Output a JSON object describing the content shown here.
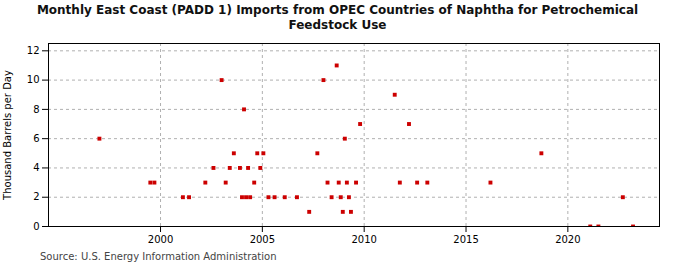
{
  "chart_data": {
    "type": "scatter",
    "title": "Monthly East Coast (PADD 1) Imports from OPEC Countries of Naphtha for Petrochemical\nFeedstock Use",
    "ylabel": "Thousand Barrels per Day",
    "caption": "Source: U.S. Energy Information Administration",
    "x": [
      1997.0,
      1999.5,
      1999.7,
      2001.1,
      2001.4,
      2002.2,
      2002.6,
      2003.0,
      2003.2,
      2003.4,
      2003.6,
      2003.9,
      2004.0,
      2004.1,
      2004.2,
      2004.3,
      2004.4,
      2004.6,
      2004.75,
      2004.9,
      2005.05,
      2005.3,
      2005.6,
      2006.1,
      2006.7,
      2007.3,
      2007.7,
      2008.0,
      2008.2,
      2008.4,
      2008.65,
      2008.75,
      2008.85,
      2008.95,
      2009.05,
      2009.15,
      2009.25,
      2009.35,
      2009.6,
      2009.8,
      2011.5,
      2011.75,
      2012.2,
      2012.6,
      2013.1,
      2016.2,
      2018.7,
      2021.1,
      2021.5,
      2022.7,
      2023.2
    ],
    "values": [
      6.0,
      3.0,
      3.0,
      2.0,
      2.0,
      3.0,
      4.0,
      10.0,
      3.0,
      4.0,
      5.0,
      4.0,
      2.0,
      8.0,
      2.0,
      4.0,
      2.0,
      3.0,
      5.0,
      4.0,
      5.0,
      2.0,
      2.0,
      2.0,
      2.0,
      1.0,
      5.0,
      10.0,
      3.0,
      2.0,
      11.0,
      3.0,
      2.0,
      1.0,
      6.0,
      3.0,
      2.0,
      1.0,
      3.0,
      7.0,
      9.0,
      3.0,
      7.0,
      3.0,
      3.0,
      3.0,
      5.0,
      0.0,
      0.0,
      2.0,
      0.0
    ],
    "color": "#cc0000",
    "marker": "square",
    "xlim": [
      1994.5,
      2024.5
    ],
    "ylim": [
      0,
      12.5
    ],
    "xticks": [
      2000,
      2005,
      2010,
      2015,
      2020
    ],
    "yticks": [
      0,
      2,
      4,
      6,
      8,
      10,
      12
    ],
    "grid": true
  }
}
